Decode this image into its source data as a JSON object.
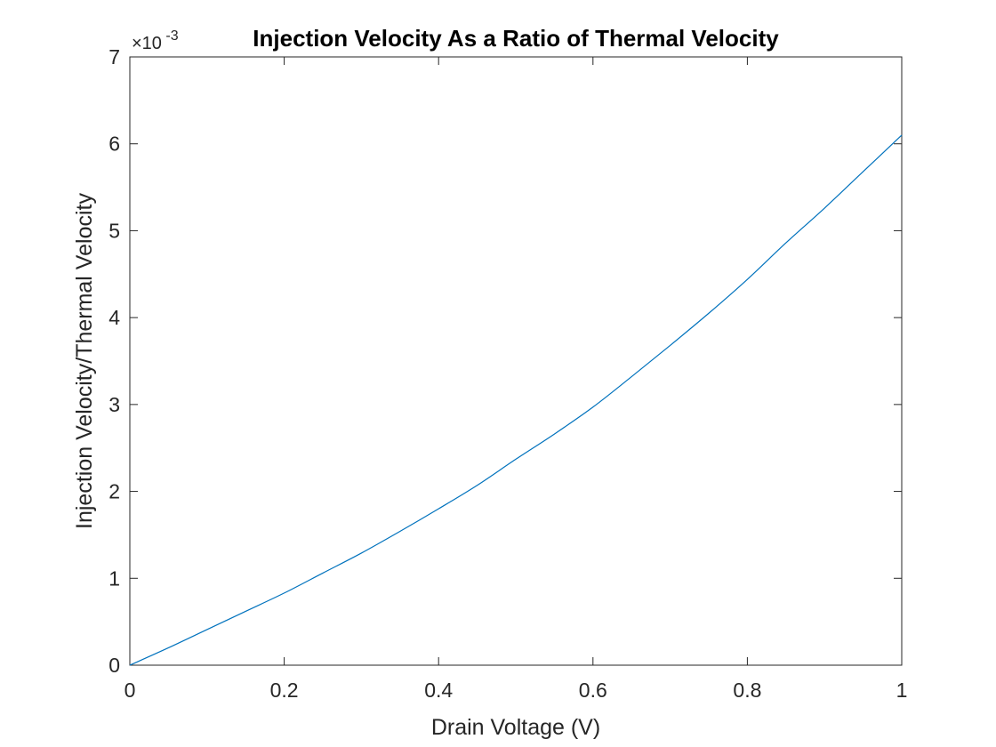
{
  "chart_data": {
    "type": "line",
    "title": "Injection Velocity As a Ratio of Thermal Velocity",
    "xlabel": "Drain Voltage (V)",
    "ylabel": "Injection Velocity/Thermal Velocity",
    "xlim": [
      0,
      1
    ],
    "ylim": [
      0,
      7
    ],
    "y_scale_factor": "×10",
    "y_scale_exponent": "-3",
    "x_ticks": [
      "0",
      "0.2",
      "0.4",
      "0.6",
      "0.8",
      "1"
    ],
    "y_ticks": [
      "0",
      "1",
      "2",
      "3",
      "4",
      "5",
      "6",
      "7"
    ],
    "grid": false,
    "box": true,
    "line_color": "#0072bd",
    "series": [
      {
        "x": [
          0,
          0.05,
          0.1,
          0.15,
          0.2,
          0.25,
          0.3,
          0.35,
          0.4,
          0.45,
          0.5,
          0.55,
          0.6,
          0.65,
          0.7,
          0.75,
          0.8,
          0.85,
          0.9,
          0.95,
          1.0
        ],
        "values": [
          0,
          0.2,
          0.41,
          0.62,
          0.83,
          1.06,
          1.29,
          1.54,
          1.8,
          2.07,
          2.37,
          2.66,
          2.97,
          3.32,
          3.68,
          4.05,
          4.44,
          4.86,
          5.26,
          5.68,
          6.1
        ]
      }
    ]
  }
}
